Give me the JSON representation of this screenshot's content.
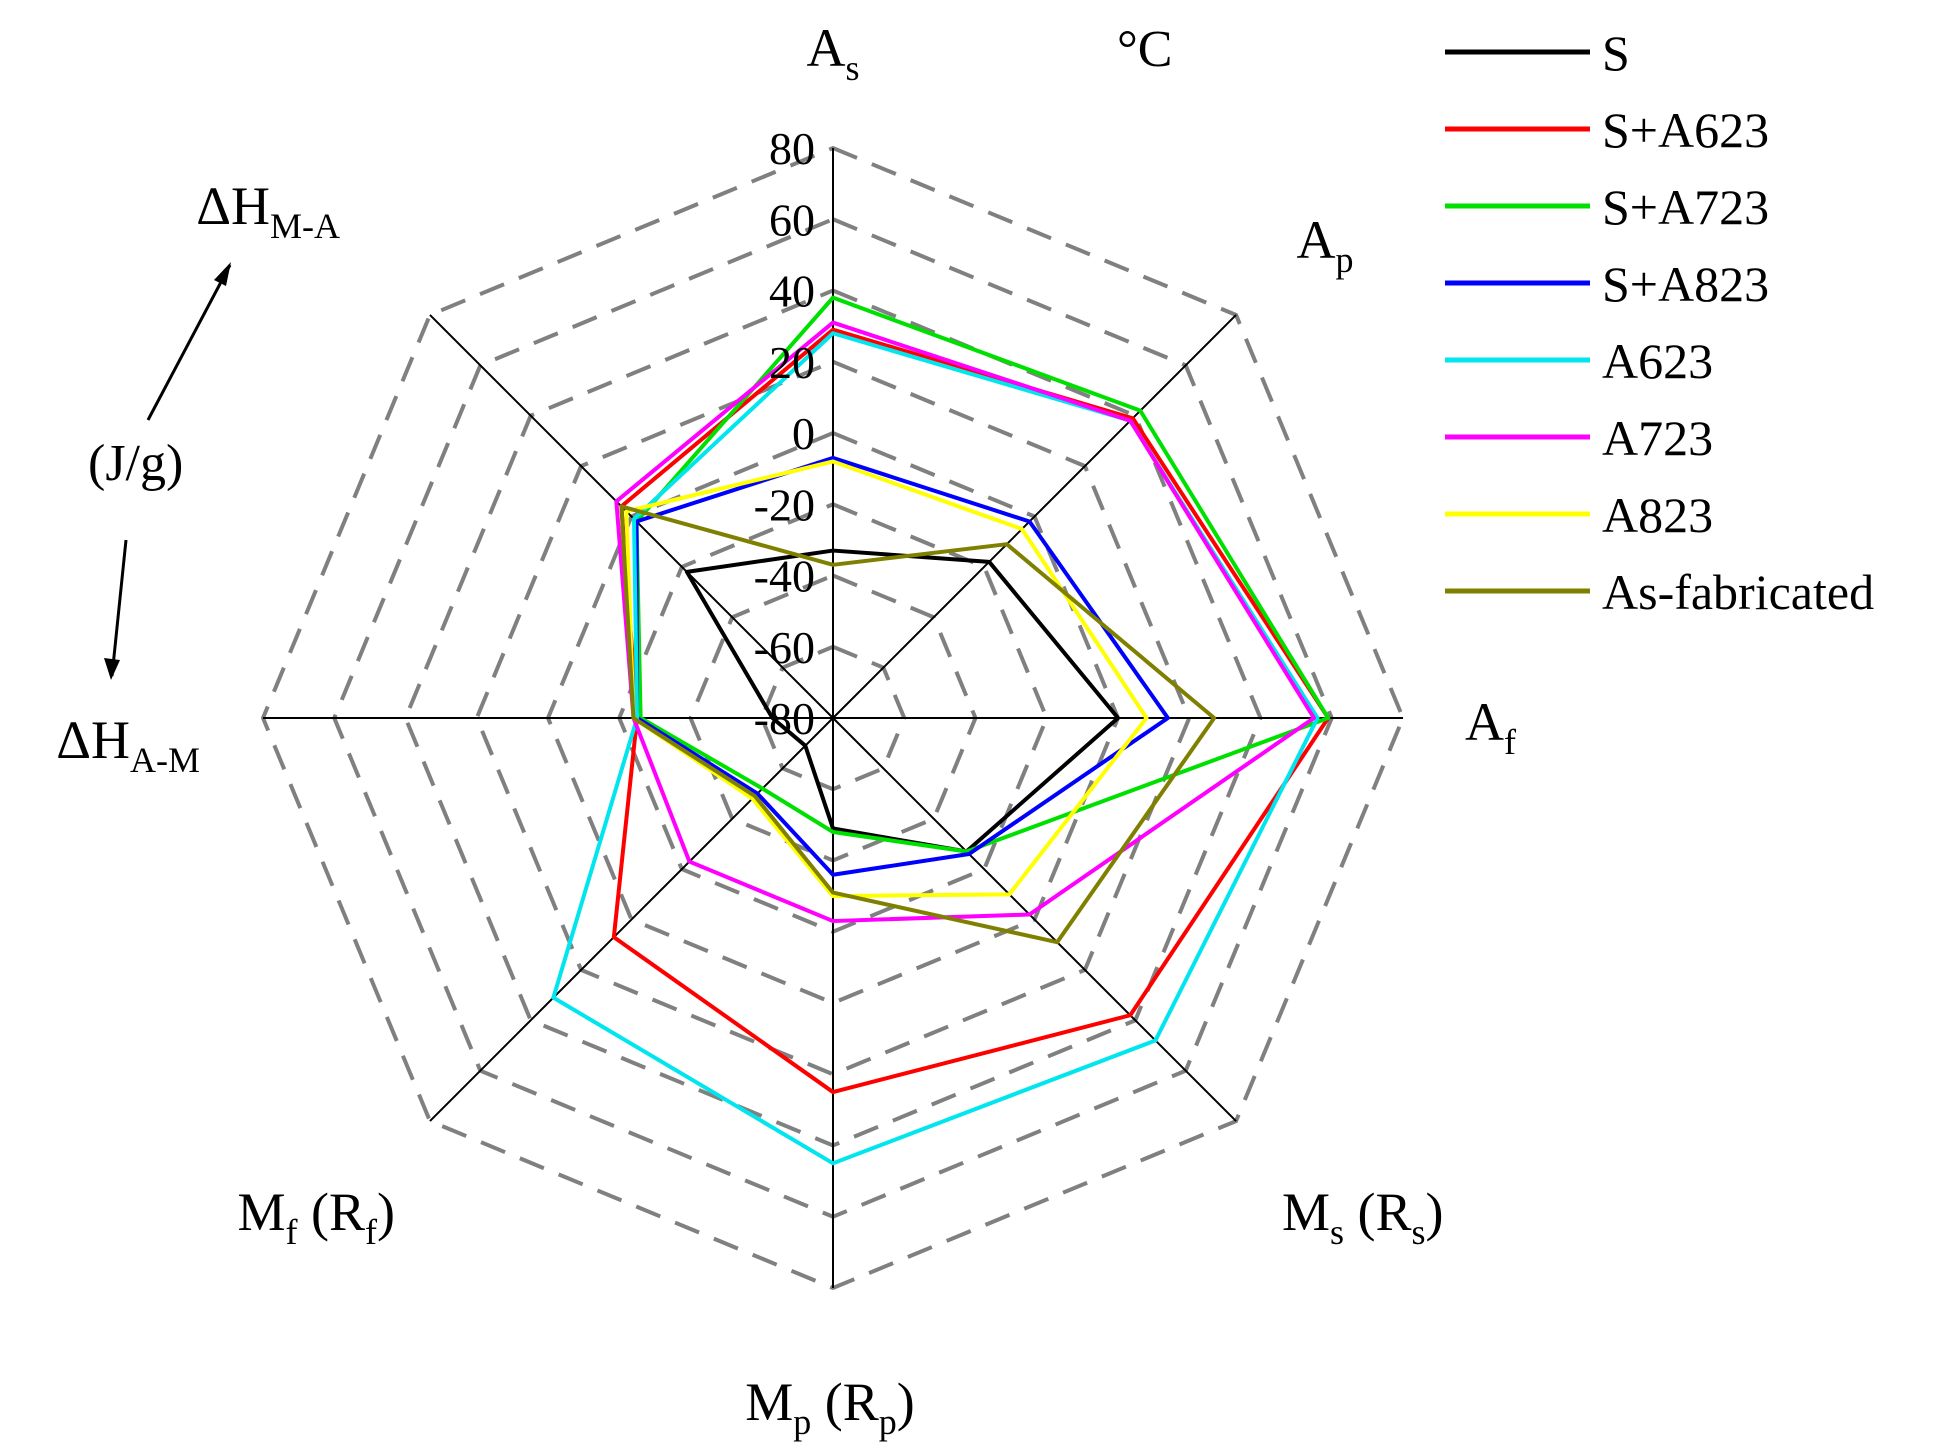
{
  "chart_data": {
    "type": "radar",
    "unit_label": "°C",
    "secondary_unit_label": "(J/g)",
    "axes": [
      {
        "main": "A",
        "sub": "s",
        "suffix": ""
      },
      {
        "main": "A",
        "sub": "p",
        "suffix": ""
      },
      {
        "main": "A",
        "sub": "f",
        "suffix": ""
      },
      {
        "main": "M",
        "sub": "s",
        "suffix": " (R",
        "suffix_sub": "s",
        "suffix_end": ")"
      },
      {
        "main": "M",
        "sub": "p",
        "suffix": " (R",
        "suffix_sub": "p",
        "suffix_end": ")"
      },
      {
        "main": "M",
        "sub": "f",
        "suffix": " (R",
        "suffix_sub": "f",
        "suffix_end": ")"
      },
      {
        "main": "ΔH",
        "sub": "A-M",
        "suffix": ""
      },
      {
        "main": "ΔH",
        "sub": "M-A",
        "suffix": ""
      }
    ],
    "ticks": [
      -80,
      -60,
      -40,
      -20,
      0,
      20,
      40,
      60,
      80
    ],
    "range": [
      -80,
      80
    ],
    "series": [
      {
        "name": "S",
        "color": "#000000",
        "values": [
          -33,
          -18,
          0,
          -27,
          -49,
          -69,
          -63,
          -22
        ]
      },
      {
        "name": "S+A623",
        "color": "#ff0000",
        "values": [
          29,
          39,
          59,
          38,
          25,
          7,
          -25,
          4
        ]
      },
      {
        "name": "S+A723",
        "color": "#00e000",
        "values": [
          38,
          42,
          59,
          -27,
          -48,
          -52,
          -26,
          -2
        ]
      },
      {
        "name": "S+A823",
        "color": "#0000ff",
        "values": [
          -7,
          -2,
          14,
          -26,
          -36,
          -50,
          -25,
          -2
        ]
      },
      {
        "name": "A623",
        "color": "#00e5ee",
        "values": [
          28,
          38,
          56,
          48,
          45,
          31,
          -25,
          -1
        ]
      },
      {
        "name": "A723",
        "color": "#ff00ff",
        "values": [
          31,
          38,
          55,
          -2,
          -23,
          -23,
          -24,
          6
        ]
      },
      {
        "name": "A823",
        "color": "#ffff00",
        "values": [
          -8,
          -5,
          8,
          -10,
          -30,
          -48,
          -24,
          2
        ]
      },
      {
        "name": "As-fabricated",
        "color": "#808000",
        "values": [
          -37,
          -11,
          27,
          9,
          -31,
          -49,
          -24,
          4
        ]
      }
    ]
  }
}
